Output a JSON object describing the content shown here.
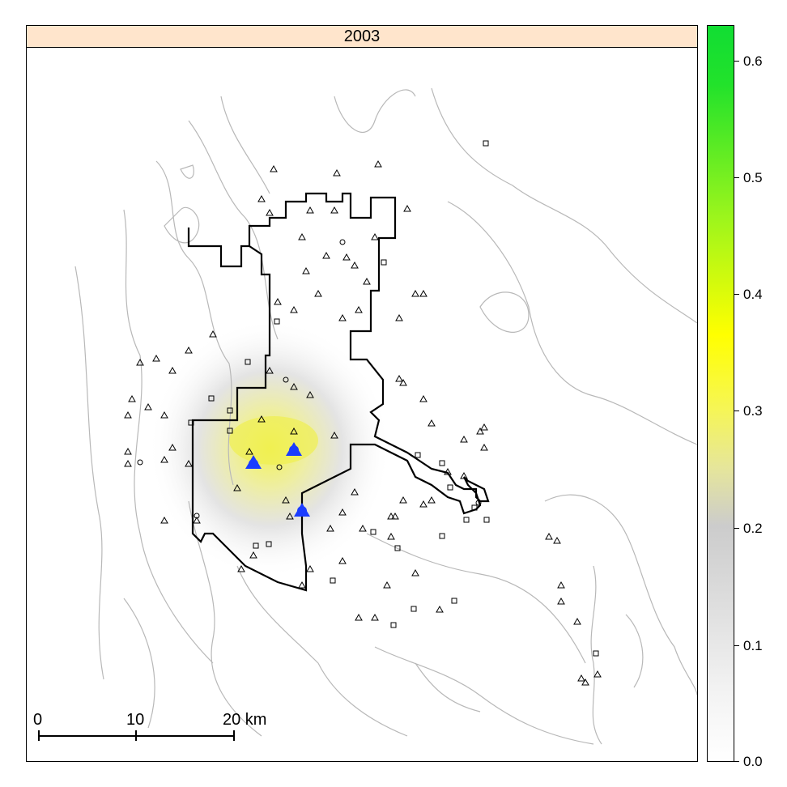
{
  "panel": {
    "title": "2003"
  },
  "scalebar": {
    "labels": [
      "0",
      "10",
      "20 km"
    ]
  },
  "colorbar": {
    "ticks": [
      "0.0",
      "0.1",
      "0.2",
      "0.3",
      "0.4",
      "0.5",
      "0.6"
    ],
    "range": [
      0.0,
      0.63
    ],
    "colors": {
      "low": "#ffffff",
      "mid": "#cccccc",
      "high_mid": "#ffff00",
      "high": "#11dd33"
    }
  },
  "legend_symbols": {
    "triangle": "triangle-marker",
    "square": "square-marker",
    "circle": "circle-marker",
    "highlight": "#1a3cff"
  }
}
